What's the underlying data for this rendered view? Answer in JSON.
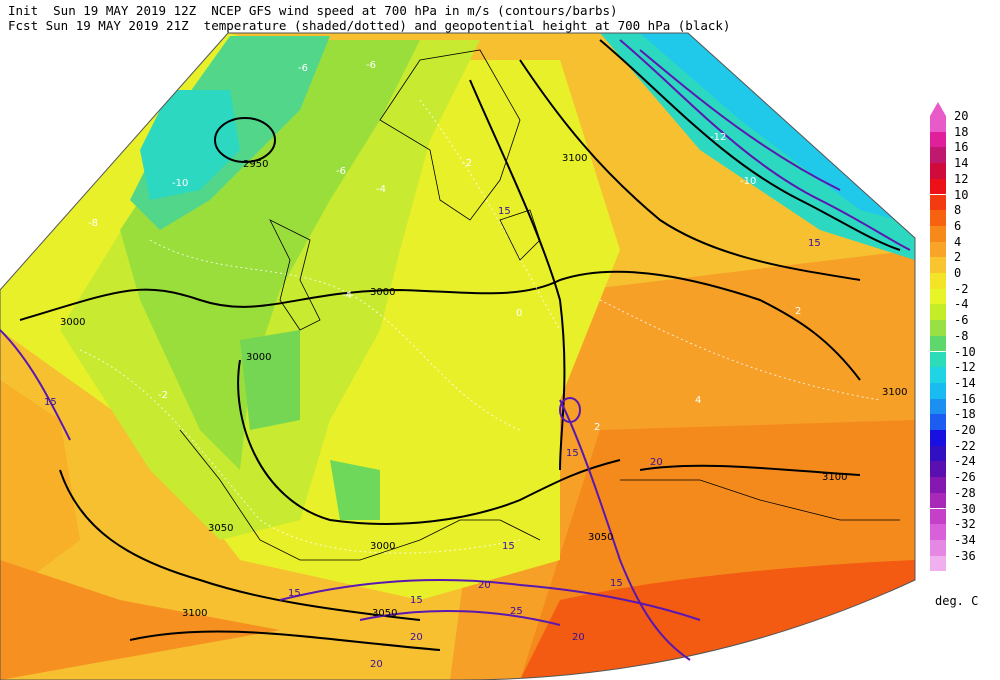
{
  "header": {
    "line1": "Init  Sun 19 MAY 2019 12Z  NCEP GFS wind speed at 700 hPa in m/s (contours/barbs)",
    "line2": "Fcst Sun 19 MAY 2019 21Z  temperature (shaded/dotted) and geopotential height at 700 hPa (black)"
  },
  "colorbar": {
    "units": "deg. C",
    "levels": [
      {
        "label": "20",
        "color": "#e85ac8"
      },
      {
        "label": "18",
        "color": "#e0209a"
      },
      {
        "label": "16",
        "color": "#c0186e"
      },
      {
        "label": "14",
        "color": "#d00a3a"
      },
      {
        "label": "12",
        "color": "#ee1018"
      },
      {
        "label": "10",
        "color": "#f43a10"
      },
      {
        "label": "8",
        "color": "#f66210"
      },
      {
        "label": "6",
        "color": "#f7891a"
      },
      {
        "label": "4",
        "color": "#f8a428"
      },
      {
        "label": "2",
        "color": "#f8c430"
      },
      {
        "label": "0",
        "color": "#f4e428"
      },
      {
        "label": "-2",
        "color": "#e6f428"
      },
      {
        "label": "-4",
        "color": "#c4ec28"
      },
      {
        "label": "-6",
        "color": "#98e044"
      },
      {
        "label": "-8",
        "color": "#5ed86c"
      },
      {
        "label": "-10",
        "color": "#2cdcb8"
      },
      {
        "label": "-12",
        "color": "#20d4e4"
      },
      {
        "label": "-14",
        "color": "#18bcf0"
      },
      {
        "label": "-16",
        "color": "#1c90f0"
      },
      {
        "label": "-18",
        "color": "#1c5cf0"
      },
      {
        "label": "-20",
        "color": "#1810e0"
      },
      {
        "label": "-22",
        "color": "#3010c0"
      },
      {
        "label": "-24",
        "color": "#5a10b0"
      },
      {
        "label": "-26",
        "color": "#8418b0"
      },
      {
        "label": "-28",
        "color": "#a828b8"
      },
      {
        "label": "-30",
        "color": "#c440c8"
      },
      {
        "label": "-32",
        "color": "#d860d8"
      },
      {
        "label": "-34",
        "color": "#e488e4"
      },
      {
        "label": "-36",
        "color": "#f0b0f0"
      }
    ]
  },
  "map_labels": {
    "height": [
      "2950",
      "2950",
      "3000",
      "3000",
      "3000",
      "3050",
      "3050",
      "3100",
      "3100",
      "3100",
      "3100",
      "3100",
      "3000",
      "3050"
    ],
    "wind": [
      "15",
      "15",
      "15",
      "15",
      "15",
      "15",
      "20",
      "20",
      "20",
      "20",
      "25",
      "20",
      "15",
      "15"
    ],
    "temp": [
      "-6",
      "-6",
      "-10",
      "-8",
      "-6",
      "-4",
      "-2",
      "0",
      "2",
      "4",
      "-4",
      "-2",
      "2",
      "-12",
      "-10"
    ]
  }
}
